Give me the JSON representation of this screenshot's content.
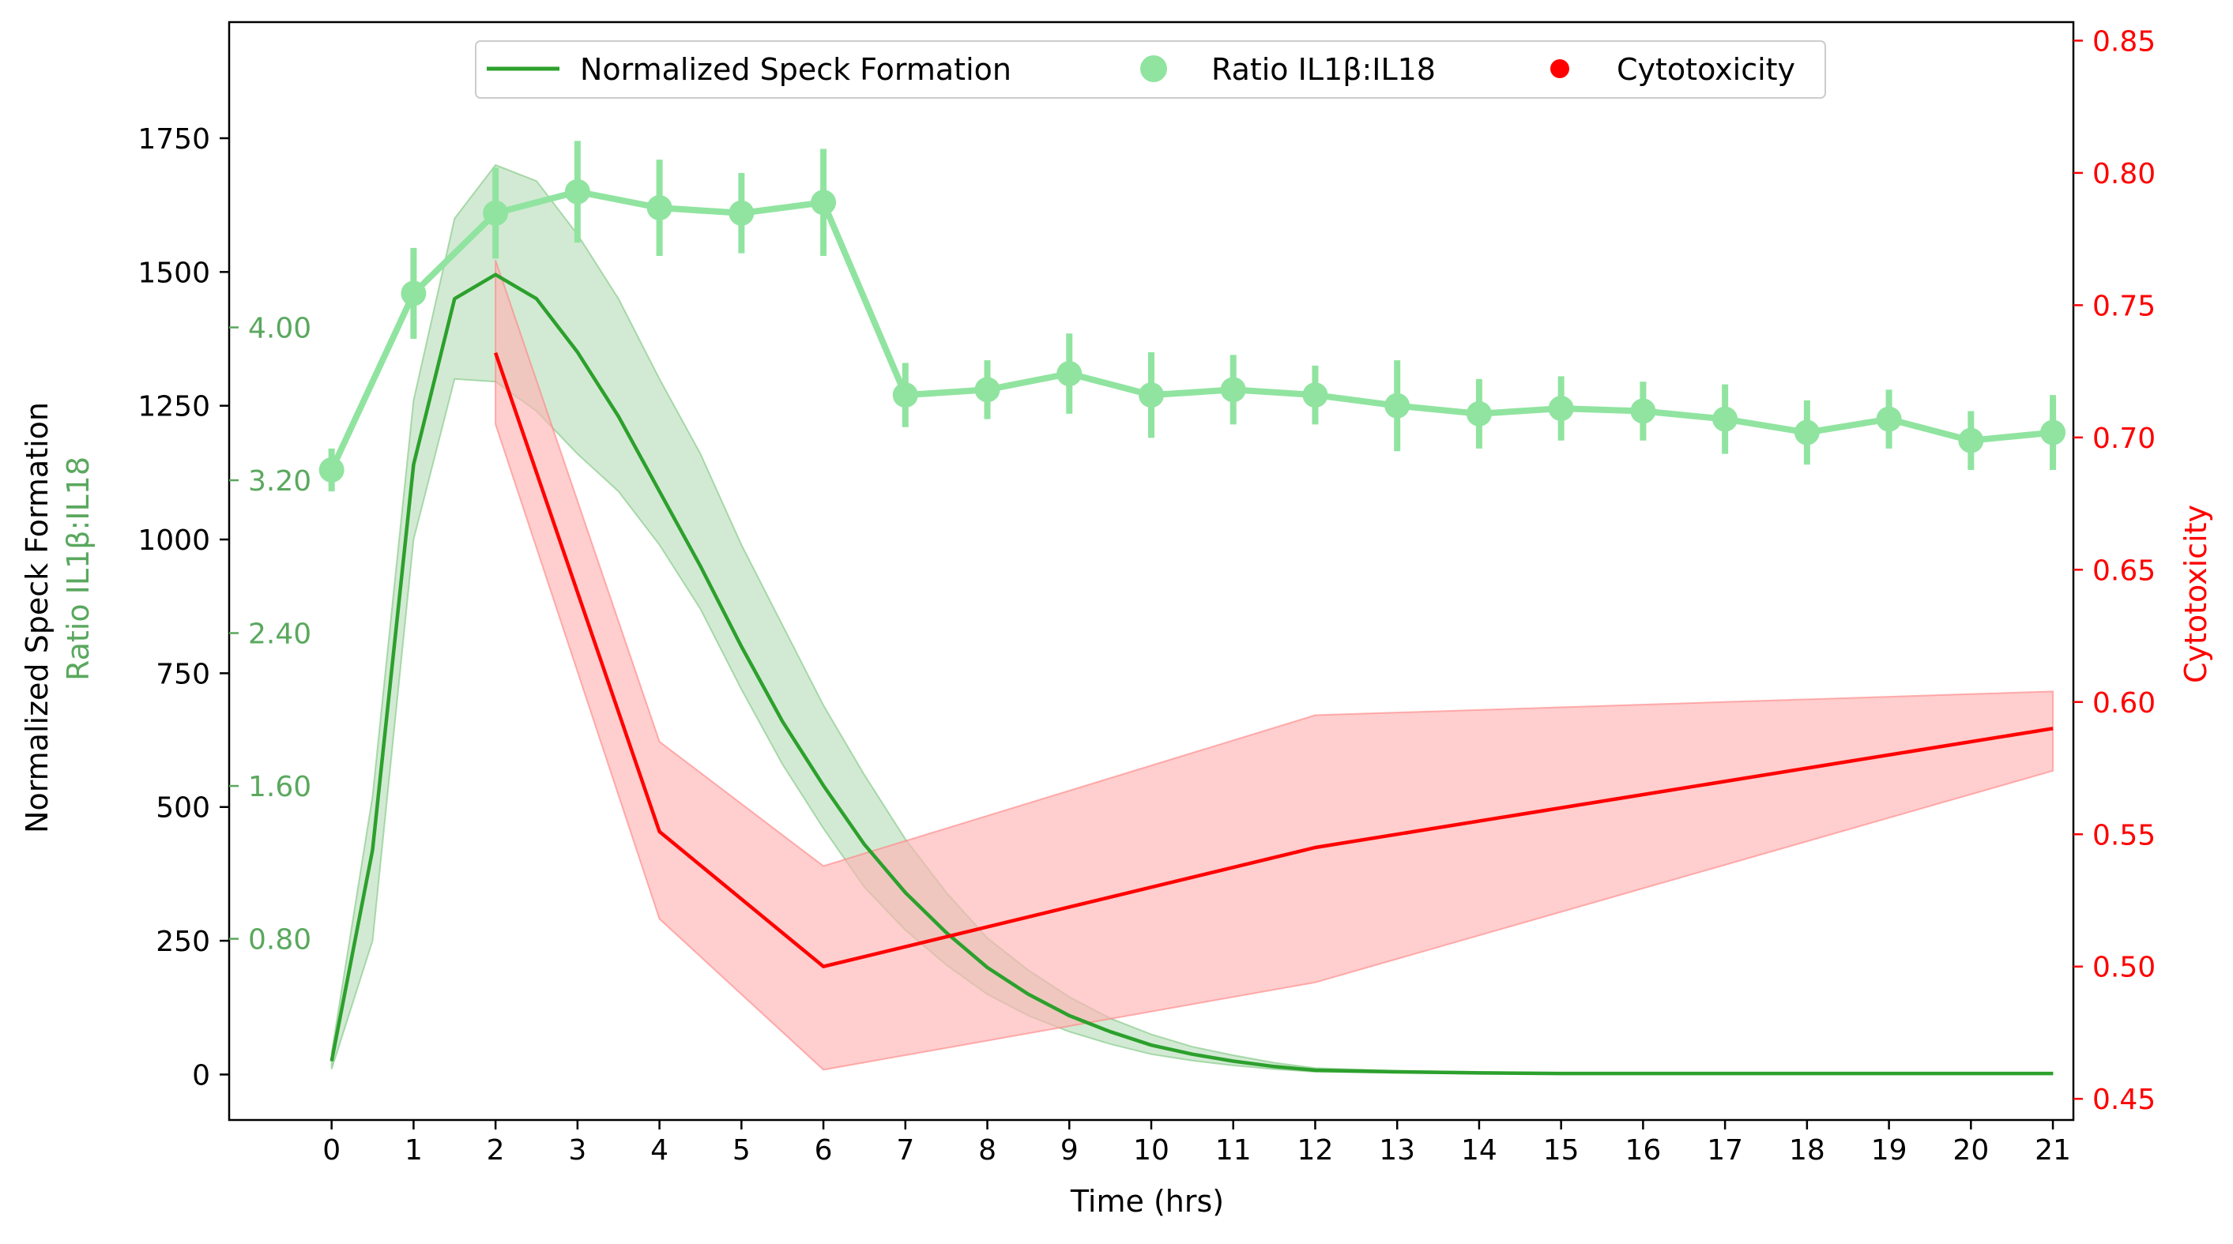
{
  "chart_data": {
    "type": "line",
    "xlabel": "Time (hrs)",
    "x_ticks": [
      0,
      1,
      2,
      3,
      4,
      5,
      6,
      7,
      8,
      9,
      10,
      11,
      12,
      13,
      14,
      15,
      16,
      17,
      18,
      19,
      20,
      21
    ],
    "xlim": [
      -1.25,
      21.25
    ],
    "left_axis": {
      "label": "Normalized Speck Formation",
      "ticks": [
        0,
        250,
        500,
        750,
        1000,
        1250,
        1500,
        1750
      ],
      "tick_labels": [
        "0",
        "250",
        "500",
        "750",
        "1000",
        "1250",
        "1500",
        "1750"
      ],
      "ylim": [
        -85,
        1967
      ]
    },
    "ratio_axis": {
      "label": "Ratio IL1β:IL18",
      "ticks": [
        0.8,
        1.6,
        2.4,
        3.2,
        4.0
      ],
      "tick_labels": [
        "0.80",
        "1.60",
        "2.40",
        "3.20",
        "4.00"
      ],
      "color": "#5aa85e"
    },
    "right_axis": {
      "label": "Cytotoxicity",
      "ticks": [
        0.45,
        0.5,
        0.55,
        0.6,
        0.65,
        0.7,
        0.75,
        0.8,
        0.85
      ],
      "tick_labels": [
        "0.45",
        "0.50",
        "0.55",
        "0.60",
        "0.65",
        "0.70",
        "0.75",
        "0.80",
        "0.85"
      ],
      "ylim": [
        0.442,
        0.857
      ],
      "color": "#ff0000"
    },
    "legend": {
      "placement": "upper center",
      "entries": [
        "Normalized Speck Formation",
        "Ratio IL1β:IL18",
        "Cytotoxicity"
      ]
    },
    "series": [
      {
        "name": "Normalized Speck Formation",
        "axis": "left",
        "color": "#2ca02c",
        "band_color": "#a5d6a7",
        "x": [
          0,
          0.5,
          1,
          1.5,
          2,
          2.5,
          3,
          3.5,
          4,
          4.5,
          5,
          5.5,
          6,
          6.5,
          7,
          7.5,
          8,
          8.5,
          9,
          9.5,
          10,
          10.5,
          11,
          11.5,
          12,
          13,
          14,
          15,
          16,
          17,
          18,
          19,
          20,
          21
        ],
        "y": [
          25,
          420,
          1140,
          1450,
          1495,
          1450,
          1350,
          1230,
          1090,
          950,
          800,
          660,
          540,
          430,
          340,
          265,
          200,
          150,
          110,
          80,
          55,
          38,
          25,
          15,
          8,
          5,
          3,
          2,
          2,
          2,
          2,
          2,
          2,
          2
        ],
        "lower": [
          10,
          250,
          1000,
          1300,
          1295,
          1240,
          1160,
          1090,
          990,
          870,
          720,
          580,
          460,
          350,
          270,
          205,
          150,
          110,
          80,
          57,
          38,
          26,
          17,
          10,
          5,
          3,
          2,
          1,
          1,
          1,
          1,
          1,
          1,
          1
        ],
        "upper": [
          40,
          520,
          1260,
          1600,
          1700,
          1670,
          1570,
          1450,
          1300,
          1160,
          990,
          840,
          690,
          560,
          440,
          340,
          255,
          195,
          145,
          105,
          75,
          52,
          36,
          22,
          12,
          7,
          5,
          3,
          3,
          3,
          3,
          3,
          3,
          3
        ]
      },
      {
        "name": "Ratio IL1β:IL18",
        "axis": "left",
        "color": "#90e4a0",
        "x": [
          0,
          1,
          2,
          3,
          4,
          5,
          6,
          7,
          8,
          9,
          10,
          11,
          12,
          13,
          14,
          15,
          16,
          17,
          18,
          19,
          20,
          21
        ],
        "y": [
          1130,
          1460,
          1610,
          1650,
          1620,
          1610,
          1630,
          1270,
          1280,
          1310,
          1270,
          1280,
          1270,
          1250,
          1235,
          1245,
          1240,
          1225,
          1200,
          1225,
          1185,
          1200
        ],
        "err": [
          40,
          85,
          85,
          95,
          90,
          75,
          100,
          60,
          55,
          75,
          80,
          65,
          55,
          85,
          65,
          60,
          55,
          65,
          60,
          55,
          55,
          70
        ]
      },
      {
        "name": "Cytotoxicity",
        "axis": "right",
        "color": "#ff0000",
        "band_color": "#ffb3b3",
        "x": [
          2,
          4,
          6,
          12,
          21
        ],
        "y": [
          0.732,
          0.551,
          0.5,
          0.545,
          0.59
        ],
        "lower": [
          0.705,
          0.518,
          0.461,
          0.494,
          0.574
        ],
        "upper": [
          0.767,
          0.585,
          0.538,
          0.595,
          0.604
        ]
      }
    ]
  }
}
